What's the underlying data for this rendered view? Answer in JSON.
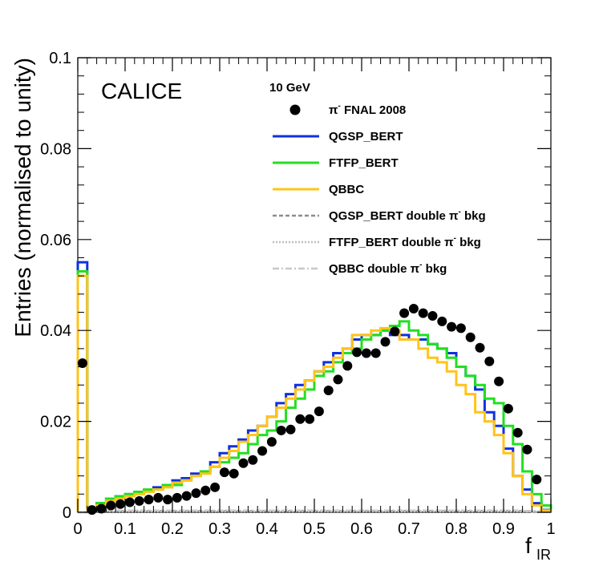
{
  "chart_data": {
    "type": "line",
    "title": "",
    "xlabel": "f",
    "xlabel_sub": "IR",
    "ylabel": "Entries (normalised to unity)",
    "xlim": [
      0,
      1
    ],
    "ylim": [
      0,
      0.1
    ],
    "x_ticks": [
      0,
      0.1,
      0.2,
      0.3,
      0.4,
      0.5,
      0.6,
      0.7,
      0.8,
      0.9,
      1
    ],
    "x_tick_labels": [
      "0",
      "0.1",
      "0.2",
      "0.3",
      "0.4",
      "0.5",
      "0.6",
      "0.7",
      "0.8",
      "0.9",
      "1"
    ],
    "y_ticks": [
      0,
      0.02,
      0.04,
      0.06,
      0.08,
      0.1
    ],
    "y_tick_labels": [
      "0",
      "0.02",
      "0.04",
      "0.06",
      "0.08",
      "0.1"
    ],
    "watermark": "CALICE",
    "energy_label": "10 GeV",
    "bin_width": 0.02,
    "series": [
      {
        "name": "π⁻ FNAL 2008",
        "style": "points",
        "color": "#000000",
        "x": [
          0.01,
          0.03,
          0.05,
          0.07,
          0.09,
          0.11,
          0.13,
          0.15,
          0.17,
          0.19,
          0.21,
          0.23,
          0.25,
          0.27,
          0.29,
          0.31,
          0.33,
          0.35,
          0.37,
          0.39,
          0.41,
          0.43,
          0.45,
          0.47,
          0.49,
          0.51,
          0.53,
          0.55,
          0.57,
          0.59,
          0.61,
          0.63,
          0.65,
          0.67,
          0.69,
          0.71,
          0.73,
          0.75,
          0.77,
          0.79,
          0.81,
          0.83,
          0.85,
          0.87,
          0.89,
          0.91,
          0.93,
          0.95,
          0.97
        ],
        "values": [
          0.0328,
          0.0005,
          0.0008,
          0.0015,
          0.0018,
          0.0022,
          0.0025,
          0.0028,
          0.0032,
          0.0028,
          0.0032,
          0.0036,
          0.0042,
          0.0048,
          0.0055,
          0.0088,
          0.0085,
          0.0108,
          0.0115,
          0.0135,
          0.0155,
          0.018,
          0.0182,
          0.0205,
          0.0205,
          0.0222,
          0.0268,
          0.0292,
          0.0322,
          0.0352,
          0.035,
          0.035,
          0.0375,
          0.0398,
          0.0438,
          0.0448,
          0.0438,
          0.0432,
          0.042,
          0.0408,
          0.0405,
          0.0385,
          0.0362,
          0.0332,
          0.0288,
          0.0228,
          0.0175,
          0.0138,
          0.0072
        ],
        "errors": [
          0.001,
          0.0003,
          0.0003,
          0.0003,
          0.0003,
          0.0003,
          0.0003,
          0.0003,
          0.0003,
          0.0003,
          0.0003,
          0.0003,
          0.0004,
          0.0004,
          0.0004,
          0.0005,
          0.0005,
          0.0005,
          0.0005,
          0.0006,
          0.0006,
          0.0006,
          0.0006,
          0.0007,
          0.0007,
          0.0007,
          0.0007,
          0.0008,
          0.0008,
          0.0008,
          0.0008,
          0.0008,
          0.0008,
          0.0009,
          0.0009,
          0.0009,
          0.0009,
          0.0009,
          0.0009,
          0.0009,
          0.0009,
          0.0008,
          0.0008,
          0.0008,
          0.0008,
          0.0007,
          0.0007,
          0.0006,
          0.0005
        ]
      },
      {
        "name": "QGSP_BERT",
        "style": "step",
        "color": "#1030e0",
        "values": [
          0.055,
          0.001,
          0.002,
          0.003,
          0.0035,
          0.004,
          0.0045,
          0.0048,
          0.0055,
          0.006,
          0.007,
          0.0075,
          0.0085,
          0.009,
          0.011,
          0.013,
          0.0145,
          0.016,
          0.018,
          0.019,
          0.021,
          0.024,
          0.026,
          0.028,
          0.029,
          0.031,
          0.033,
          0.035,
          0.036,
          0.038,
          0.039,
          0.039,
          0.04,
          0.039,
          0.039,
          0.038,
          0.038,
          0.037,
          0.036,
          0.035,
          0.032,
          0.03,
          0.027,
          0.022,
          0.019,
          0.014,
          0.008,
          0.005,
          0.002,
          0.0005
        ]
      },
      {
        "name": "FTFP_BERT",
        "style": "step",
        "color": "#20e020",
        "values": [
          0.053,
          0.001,
          0.002,
          0.003,
          0.0035,
          0.004,
          0.0045,
          0.005,
          0.005,
          0.006,
          0.006,
          0.007,
          0.008,
          0.009,
          0.01,
          0.011,
          0.012,
          0.013,
          0.015,
          0.017,
          0.018,
          0.02,
          0.023,
          0.025,
          0.027,
          0.03,
          0.031,
          0.033,
          0.035,
          0.036,
          0.038,
          0.039,
          0.04,
          0.041,
          0.042,
          0.04,
          0.039,
          0.037,
          0.036,
          0.034,
          0.032,
          0.03,
          0.028,
          0.025,
          0.024,
          0.019,
          0.015,
          0.009,
          0.004,
          0.0015
        ]
      },
      {
        "name": "QBBC",
        "style": "step",
        "color": "#ffc41a",
        "values": [
          0.052,
          0.0008,
          0.0015,
          0.0025,
          0.003,
          0.0035,
          0.004,
          0.0045,
          0.005,
          0.0055,
          0.0065,
          0.007,
          0.008,
          0.0085,
          0.01,
          0.012,
          0.0135,
          0.0155,
          0.017,
          0.019,
          0.021,
          0.023,
          0.025,
          0.027,
          0.029,
          0.031,
          0.032,
          0.034,
          0.036,
          0.039,
          0.039,
          0.04,
          0.0405,
          0.04,
          0.038,
          0.038,
          0.036,
          0.034,
          0.033,
          0.031,
          0.028,
          0.026,
          0.022,
          0.02,
          0.017,
          0.013,
          0.008,
          0.004,
          0.0015,
          0.0004
        ]
      },
      {
        "name": "QGSP_BERT double π⁻ bkg",
        "style": "dashed",
        "color": "#8c8c8c",
        "values": [
          0,
          0.0002,
          0.0003,
          0.0003,
          0.0003,
          0.0003,
          0.0003,
          0.0003,
          0.0003,
          0.0003,
          0.0003,
          0.0003,
          0.0003,
          0.0003,
          0.0003,
          0.0003,
          0.0003,
          0.0003,
          0.0003,
          0.0003,
          0.0003,
          0.0003,
          0.0003,
          0.0003,
          0.0003,
          0.0003,
          0.0003,
          0.0003,
          0.0003,
          0.0003,
          0.0003,
          0.0003,
          0.0003,
          0.0003,
          0.0003,
          0.0003,
          0.0003,
          0.0003,
          0.0003,
          0.0003,
          0.0003,
          0.0003,
          0.0003,
          0.0003,
          0.0003,
          0.0003,
          0.0003,
          0.0002,
          0.0002,
          0.0001
        ]
      },
      {
        "name": "FTFP_BERT double π⁻ bkg",
        "style": "dotted",
        "color": "#bdbdbd",
        "values": [
          0,
          0.0002,
          0.0002,
          0.0002,
          0.0002,
          0.0002,
          0.0002,
          0.0002,
          0.0002,
          0.0002,
          0.0002,
          0.0002,
          0.0002,
          0.0002,
          0.0002,
          0.0002,
          0.0002,
          0.0002,
          0.0002,
          0.0002,
          0.0002,
          0.0002,
          0.0002,
          0.0002,
          0.0002,
          0.0002,
          0.0002,
          0.0002,
          0.0002,
          0.0002,
          0.0002,
          0.0002,
          0.0002,
          0.0002,
          0.0002,
          0.0002,
          0.0002,
          0.0002,
          0.0002,
          0.0002,
          0.0002,
          0.0002,
          0.0002,
          0.0002,
          0.0002,
          0.0002,
          0.0002,
          0.0002,
          0.0001,
          0.0001
        ]
      },
      {
        "name": "QBBC double π⁻ bkg",
        "style": "dashdot",
        "color": "#c8c8c8",
        "values": [
          0,
          0.0004,
          0.0004,
          0.0004,
          0.0004,
          0.0004,
          0.0004,
          0.0004,
          0.0004,
          0.0004,
          0.0004,
          0.0004,
          0.0004,
          0.0004,
          0.0004,
          0.0004,
          0.0004,
          0.0004,
          0.0004,
          0.0004,
          0.0004,
          0.0004,
          0.0004,
          0.0004,
          0.0004,
          0.0004,
          0.0004,
          0.0004,
          0.0004,
          0.0004,
          0.0004,
          0.0004,
          0.0004,
          0.0004,
          0.0004,
          0.0004,
          0.0004,
          0.0004,
          0.0004,
          0.0004,
          0.0004,
          0.0004,
          0.0004,
          0.0004,
          0.0004,
          0.0004,
          0.0004,
          0.0003,
          0.0002,
          0.0001
        ]
      }
    ],
    "legend": {
      "position": "top-right",
      "entries": [
        {
          "series": 0,
          "prefix": "π",
          "sup": "-",
          "suffix": " FNAL 2008"
        },
        {
          "series": 1,
          "prefix": "QGSP_BERT",
          "sup": "",
          "suffix": ""
        },
        {
          "series": 2,
          "prefix": "FTFP_BERT",
          "sup": "",
          "suffix": ""
        },
        {
          "series": 3,
          "prefix": "QBBC",
          "sup": "",
          "suffix": ""
        },
        {
          "series": 4,
          "prefix": "QGSP_BERT double π",
          "sup": "-",
          "suffix": " bkg"
        },
        {
          "series": 5,
          "prefix": "FTFP_BERT double π",
          "sup": "-",
          "suffix": " bkg"
        },
        {
          "series": 6,
          "prefix": "QBBC double π",
          "sup": "-",
          "suffix": " bkg"
        }
      ]
    }
  }
}
